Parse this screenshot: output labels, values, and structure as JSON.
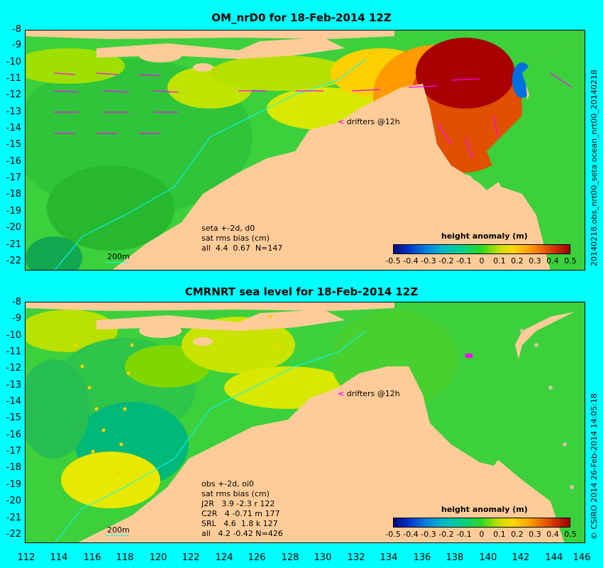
{
  "top_panel": {
    "title": "OM_nrD0 for 18-Feb-2014 12Z",
    "stats_lines": "seta +-2d, d0\nsat rms bias (cm)\nall  4.4  0.67  N=147",
    "scale_label": "200m",
    "drifter_label": "drifters @12h",
    "side_label": "20140218.obs_nrt00_seta     ocean_nrt00_20140218"
  },
  "bottom_panel": {
    "title": "CMRNRT sea level  for 18-Feb-2014 12Z",
    "stats_lines": "obs +-2d, oi0\nsat rms bias (cm)\nJ2R   3.9 -2.3 r 122\nC2R   4 -0.71 m 177\nSRL   4.6  1.8 k 127\nall   4.2 -0.42 N=426",
    "scale_label": "200m",
    "drifter_label": "drifters @12h",
    "side_label": "© CSIRO  2014     26-Feb-2014 14:05:18"
  },
  "colorbar": {
    "title": "height anomaly (m)",
    "ticks": [
      "-0.5",
      "-0.4",
      "-0.3",
      "-0.2",
      "-0.1",
      "0",
      "0.1",
      "0.2",
      "0.3",
      "0.4",
      "0.5"
    ]
  },
  "axes": {
    "lat_ticks": [
      "-8",
      "-9",
      "-10",
      "-11",
      "-12",
      "-13",
      "-14",
      "-15",
      "-16",
      "-17",
      "-18",
      "-19",
      "-20",
      "-21",
      "-22"
    ],
    "lon_ticks": [
      "112",
      "114",
      "116",
      "118",
      "120",
      "122",
      "124",
      "126",
      "128",
      "130",
      "132",
      "134",
      "136",
      "138",
      "140",
      "142",
      "144",
      "146"
    ]
  },
  "colors": {
    "land": "#ffcc99",
    "background": "#00ffff",
    "drifter": "#ff00ff",
    "base_sea": "#3cd03c"
  }
}
